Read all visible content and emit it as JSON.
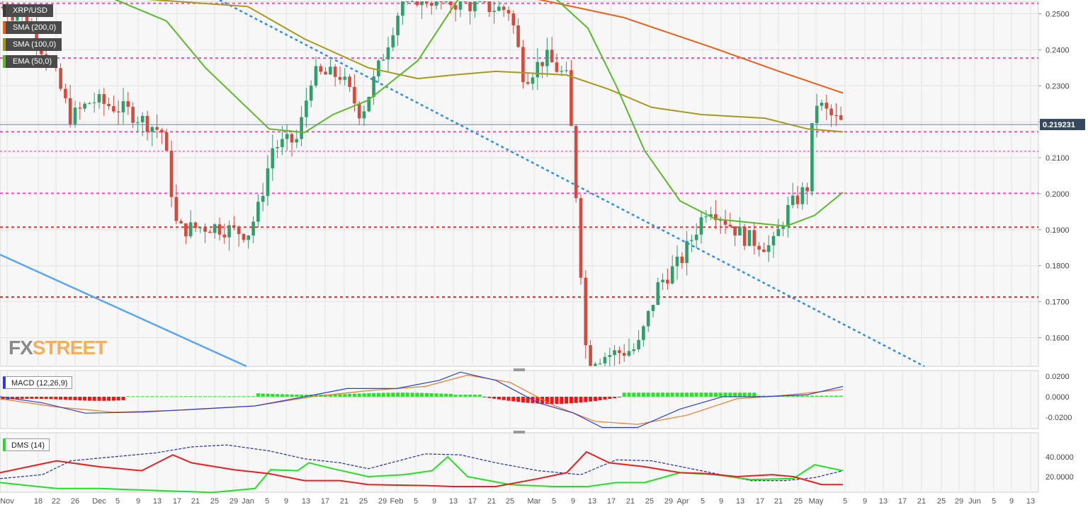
{
  "chart_data": [
    {
      "type": "candlestick",
      "symbol": "XRP/USD",
      "indicators": [
        {
          "name": "SMA (200,0)",
          "color": "#e8601a"
        },
        {
          "name": "SMA (100,0)",
          "color": "#a89820"
        },
        {
          "name": "EMA (50,0)",
          "color": "#5cb82c"
        }
      ],
      "last_price": "0.219231",
      "ylim": [
        0.154,
        0.254
      ],
      "y_ticks": [
        "0.2500",
        "0.2400",
        "0.2300",
        "0.2200",
        "0.2100",
        "0.2000",
        "0.1900",
        "0.1800",
        "0.1700",
        "0.1600"
      ],
      "x_ticks": [
        "Nov",
        "18",
        "22",
        "26",
        "Dec",
        "5",
        "9",
        "13",
        "17",
        "21",
        "25",
        "29",
        "Jan",
        "5",
        "9",
        "13",
        "17",
        "21",
        "25",
        "29",
        "Feb",
        "5",
        "9",
        "13",
        "17",
        "21",
        "25",
        "Mar",
        "5",
        "9",
        "13",
        "17",
        "21",
        "25",
        "29",
        "Apr",
        "5",
        "9",
        "13",
        "17",
        "21",
        "25",
        "May",
        "5",
        "9",
        "13",
        "17",
        "21",
        "25",
        "29",
        "Jun",
        "5",
        "9",
        "13"
      ],
      "horizontal_levels": [
        {
          "value": 0.2529,
          "color": "#f050b8",
          "style": "dotted-thick"
        },
        {
          "value": 0.2377,
          "color": "#f050b8",
          "style": "dotted-thick"
        },
        {
          "value": 0.2172,
          "color": "#f050b8",
          "style": "dotted-thick"
        },
        {
          "value": 0.2118,
          "color": "#f050b8",
          "style": "dotted-thin"
        },
        {
          "value": 0.2001,
          "color": "#f050b8",
          "style": "dotted-thick"
        },
        {
          "value": 0.1907,
          "color": "#e03030",
          "style": "dotted-thick"
        },
        {
          "value": 0.1713,
          "color": "#e03030",
          "style": "dotted-thick"
        }
      ],
      "colors": {
        "up": "#2e9e6b",
        "down": "#d6493b",
        "current_line": "#6a7f9a"
      }
    },
    {
      "type": "line+histogram",
      "label": "MACD (12,26,9)",
      "ylim": [
        -0.024,
        0.024
      ],
      "y_ticks": [
        "0.0200",
        "0.0000",
        "-0.0200"
      ],
      "colors": {
        "macd": "#2a3fd8",
        "signal": "#f07a2a",
        "hist_pos": "#1fe81f",
        "hist_neg": "#ff1010"
      }
    },
    {
      "type": "line",
      "label": "DMS (14)",
      "ylim": [
        5,
        55
      ],
      "y_ticks": [
        "40.0000",
        "20.0000"
      ],
      "colors": {
        "plus_di": "#22e022",
        "minus_di": "#e82020",
        "adx": "#1c2fa8"
      }
    }
  ],
  "watermark": {
    "fx": "FX",
    "street": "STREET"
  }
}
